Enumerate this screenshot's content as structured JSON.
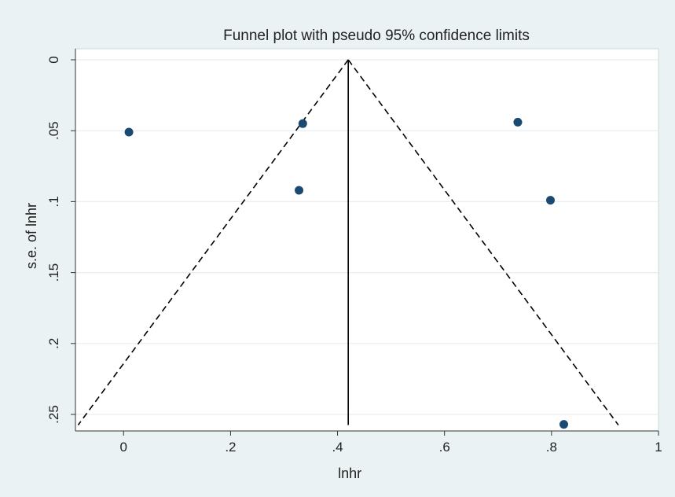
{
  "chart_data": {
    "type": "scatter",
    "title": "Funnel plot with pseudo 95% confidence limits",
    "xlabel": "lnhr",
    "ylabel": "s.e. of lnhr",
    "xlim": [
      -0.09,
      1.0
    ],
    "ylim": [
      0,
      0.26
    ],
    "y_reversed": true,
    "x_ticks": [
      0,
      0.2,
      0.4,
      0.6,
      0.8,
      1
    ],
    "x_tick_labels": [
      "0",
      ".2",
      ".4",
      ".6",
      ".8",
      "1"
    ],
    "y_ticks": [
      0,
      0.05,
      0.1,
      0.15,
      0.2,
      0.25
    ],
    "y_tick_labels": [
      "0",
      ".05",
      ".1",
      ".15",
      ".2",
      ".25"
    ],
    "grid": "horizontal",
    "legend": "none",
    "pooled_estimate": 0.42,
    "pseudo_ci_limits": {
      "apex": [
        0.42,
        0
      ],
      "lower_end": [
        -0.085,
        0.2575
      ],
      "upper_end": [
        0.925,
        0.2575
      ]
    },
    "points": [
      {
        "x": 0.01,
        "y": 0.051
      },
      {
        "x": 0.335,
        "y": 0.045
      },
      {
        "x": 0.328,
        "y": 0.092
      },
      {
        "x": 0.737,
        "y": 0.044
      },
      {
        "x": 0.798,
        "y": 0.099
      },
      {
        "x": 0.823,
        "y": 0.257
      }
    ],
    "colors": {
      "background": "#eaf2f3",
      "plot_bg": "#ffffff",
      "marker": "#1a4a72",
      "grid": "#e6eef0",
      "line": "#000000"
    }
  }
}
